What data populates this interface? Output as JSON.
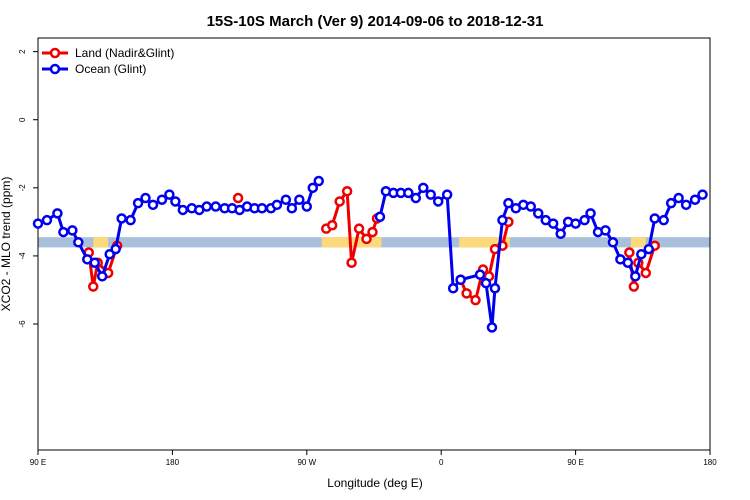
{
  "chart_data": {
    "type": "line",
    "title": "15S-10S March (Ver 9)   2014-09-06 to 2018-12-31",
    "xlabel": "Longitude (deg E)",
    "ylabel": "XCO2 - MLO trend (ppm)",
    "xlim": [
      90,
      540
    ],
    "ylim": [
      -9.7,
      2.4
    ],
    "xticks": [
      {
        "value": 90,
        "label": "90 E"
      },
      {
        "value": 180,
        "label": "180"
      },
      {
        "value": 270,
        "label": "90 W"
      },
      {
        "value": 360,
        "label": "0"
      },
      {
        "value": 450,
        "label": "90 E"
      },
      {
        "value": 540,
        "label": "180"
      }
    ],
    "yticks": [
      {
        "value": 2,
        "label": "2"
      },
      {
        "value": 0,
        "label": "0"
      },
      {
        "value": -2,
        "label": "-2"
      },
      {
        "value": -4,
        "label": "-4"
      },
      {
        "value": -6,
        "label": "-6"
      }
    ],
    "legend_position": "top-left",
    "band": {
      "color": "#a8c0dc",
      "y_center": -3.6,
      "height": 0.3
    },
    "land_mask": {
      "color": "#fcd97a",
      "segments": [
        {
          "x0": 127,
          "x1": 137,
          "y0": -3.75,
          "y1": -3.45
        },
        {
          "x0": 280,
          "x1": 320,
          "y0": -3.75,
          "y1": -3.45
        },
        {
          "x0": 372,
          "x1": 406,
          "y0": -3.75,
          "y1": -3.45
        },
        {
          "x0": 487,
          "x1": 497,
          "y0": -3.75,
          "y1": -3.45
        }
      ]
    },
    "series": [
      {
        "name": "Land (Nadir&Glint)",
        "color": "#ee0000",
        "segments": [
          [
            [
              124,
              -3.9
            ],
            [
              127,
              -4.9
            ],
            [
              130,
              -4.2
            ],
            [
              137,
              -4.5
            ],
            [
              143,
              -3.7
            ]
          ],
          [
            [
              224,
              -2.3
            ]
          ],
          [
            [
              283,
              -3.2
            ],
            [
              287,
              -3.1
            ],
            [
              292,
              -2.4
            ],
            [
              297,
              -2.1
            ],
            [
              300,
              -4.2
            ],
            [
              305,
              -3.2
            ],
            [
              310,
              -3.5
            ],
            [
              314,
              -3.3
            ],
            [
              317,
              -2.9
            ]
          ],
          [
            [
              373,
              -4.7
            ],
            [
              377,
              -5.1
            ],
            [
              383,
              -5.3
            ],
            [
              388,
              -4.4
            ],
            [
              392,
              -4.6
            ],
            [
              396,
              -3.8
            ],
            [
              401,
              -3.7
            ],
            [
              405,
              -3.0
            ]
          ],
          [
            [
              486,
              -3.9
            ],
            [
              489,
              -4.9
            ],
            [
              492,
              -4.2
            ],
            [
              497,
              -4.5
            ],
            [
              503,
              -3.7
            ]
          ]
        ]
      },
      {
        "name": "Ocean (Glint)",
        "color": "#0000ee",
        "segments": [
          [
            [
              90,
              -3.05
            ],
            [
              96,
              -2.95
            ],
            [
              103,
              -2.75
            ],
            [
              107,
              -3.3
            ],
            [
              113,
              -3.25
            ],
            [
              117,
              -3.6
            ],
            [
              123,
              -4.1
            ],
            [
              128,
              -4.2
            ],
            [
              133,
              -4.6
            ],
            [
              138,
              -3.95
            ],
            [
              142,
              -3.8
            ],
            [
              146,
              -2.9
            ],
            [
              152,
              -2.95
            ],
            [
              157,
              -2.45
            ],
            [
              162,
              -2.3
            ],
            [
              167,
              -2.5
            ],
            [
              173,
              -2.35
            ],
            [
              178,
              -2.2
            ],
            [
              182,
              -2.4
            ],
            [
              187,
              -2.65
            ],
            [
              193,
              -2.6
            ],
            [
              198,
              -2.65
            ],
            [
              203,
              -2.55
            ],
            [
              209,
              -2.55
            ],
            [
              215,
              -2.6
            ],
            [
              220,
              -2.6
            ],
            [
              225,
              -2.65
            ],
            [
              230,
              -2.55
            ],
            [
              235,
              -2.6
            ],
            [
              240,
              -2.6
            ],
            [
              246,
              -2.6
            ],
            [
              250,
              -2.5
            ],
            [
              256,
              -2.35
            ],
            [
              260,
              -2.6
            ],
            [
              265,
              -2.35
            ],
            [
              270,
              -2.55
            ],
            [
              274,
              -2.0
            ],
            [
              278,
              -1.8
            ]
          ],
          [
            [
              319,
              -2.85
            ],
            [
              323,
              -2.1
            ],
            [
              328,
              -2.15
            ],
            [
              333,
              -2.15
            ],
            [
              338,
              -2.15
            ],
            [
              343,
              -2.3
            ],
            [
              348,
              -2.0
            ],
            [
              353,
              -2.2
            ],
            [
              358,
              -2.4
            ],
            [
              364,
              -2.2
            ],
            [
              368,
              -4.95
            ],
            [
              373,
              -4.7
            ],
            [
              386,
              -4.55
            ],
            [
              390,
              -4.8
            ],
            [
              394,
              -6.1
            ],
            [
              396,
              -4.95
            ],
            [
              401,
              -2.95
            ],
            [
              405,
              -2.45
            ],
            [
              410,
              -2.6
            ],
            [
              415,
              -2.5
            ],
            [
              420,
              -2.55
            ],
            [
              425,
              -2.75
            ],
            [
              430,
              -2.95
            ],
            [
              435,
              -3.05
            ],
            [
              440,
              -3.35
            ],
            [
              445,
              -3.0
            ],
            [
              450,
              -3.05
            ],
            [
              456,
              -2.95
            ],
            [
              460,
              -2.75
            ],
            [
              465,
              -3.3
            ],
            [
              470,
              -3.25
            ],
            [
              475,
              -3.6
            ],
            [
              480,
              -4.1
            ],
            [
              485,
              -4.2
            ],
            [
              490,
              -4.6
            ],
            [
              494,
              -3.95
            ],
            [
              499,
              -3.8
            ],
            [
              503,
              -2.9
            ],
            [
              509,
              -2.95
            ],
            [
              514,
              -2.45
            ],
            [
              519,
              -2.3
            ],
            [
              524,
              -2.5
            ],
            [
              530,
              -2.35
            ],
            [
              535,
              -2.2
            ]
          ]
        ]
      }
    ]
  }
}
